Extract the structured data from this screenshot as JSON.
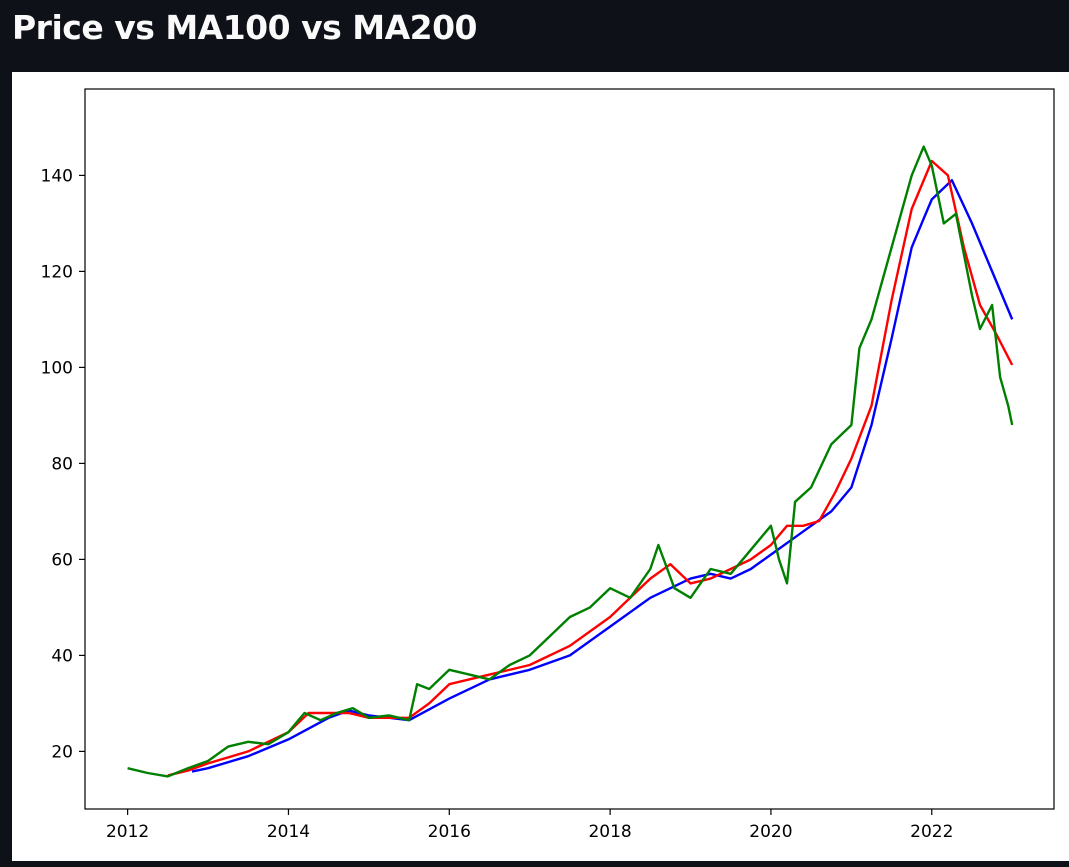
{
  "header": {
    "title": "Price vs MA100 vs MA200"
  },
  "colors": {
    "background": "#0e1117",
    "price": "#008000",
    "ma100": "#ff0000",
    "ma200": "#0000ff",
    "plot_bg": "#ffffff"
  },
  "chart_data": {
    "type": "line",
    "title": "",
    "xlabel": "",
    "ylabel": "",
    "xlim": [
      2011.47,
      2023.52
    ],
    "ylim": [
      8,
      158
    ],
    "xticks": [
      2012,
      2014,
      2016,
      2018,
      2020,
      2022
    ],
    "yticks": [
      20,
      40,
      60,
      80,
      100,
      120,
      140
    ],
    "grid": false,
    "legend": "none",
    "series": [
      {
        "color": "#008000",
        "x": [
          2012.0,
          2012.25,
          2012.5,
          2012.75,
          2013.0,
          2013.25,
          2013.5,
          2013.75,
          2014.0,
          2014.2,
          2014.4,
          2014.6,
          2014.8,
          2015.0,
          2015.25,
          2015.5,
          2015.6,
          2015.75,
          2016.0,
          2016.25,
          2016.5,
          2016.75,
          2017.0,
          2017.25,
          2017.5,
          2017.75,
          2018.0,
          2018.25,
          2018.5,
          2018.6,
          2018.8,
          2019.0,
          2019.25,
          2019.5,
          2019.75,
          2020.0,
          2020.1,
          2020.2,
          2020.3,
          2020.5,
          2020.75,
          2021.0,
          2021.1,
          2021.25,
          2021.5,
          2021.75,
          2021.9,
          2022.0,
          2022.15,
          2022.3,
          2022.5,
          2022.6,
          2022.75,
          2022.85,
          2022.95,
          2023.0
        ],
        "values": [
          16.5,
          15.5,
          14.8,
          16.5,
          18,
          21,
          22,
          21.5,
          24,
          28,
          26.5,
          28,
          29,
          27,
          27.5,
          26.5,
          34,
          33,
          37,
          36,
          35,
          38,
          40,
          44,
          48,
          50,
          54,
          52,
          58,
          63,
          54,
          52,
          58,
          57,
          62,
          67,
          60,
          55,
          72,
          75,
          84,
          88,
          104,
          110,
          125,
          140,
          146,
          142,
          130,
          132,
          115,
          108,
          113,
          98,
          92,
          88
        ]
      },
      {
        "color": "#ff0000",
        "x": [
          2012.5,
          2012.75,
          2013.0,
          2013.5,
          2014.0,
          2014.25,
          2014.5,
          2014.75,
          2015.0,
          2015.5,
          2015.75,
          2016.0,
          2016.5,
          2017.0,
          2017.5,
          2018.0,
          2018.25,
          2018.5,
          2018.75,
          2019.0,
          2019.25,
          2019.5,
          2019.75,
          2020.0,
          2020.2,
          2020.4,
          2020.6,
          2020.8,
          2021.0,
          2021.25,
          2021.5,
          2021.75,
          2022.0,
          2022.2,
          2022.4,
          2022.6,
          2022.8,
          2023.0
        ],
        "values": [
          15,
          16,
          17.5,
          20,
          24,
          28,
          28,
          28,
          27,
          27,
          30,
          34,
          36,
          38,
          42,
          48,
          52,
          56,
          59,
          55,
          56,
          58,
          60,
          63,
          67,
          67,
          68,
          74,
          81,
          92,
          114,
          133,
          143,
          140,
          125,
          113,
          107,
          100.5
        ]
      },
      {
        "color": "#0000ff",
        "x": [
          2012.8,
          2013.0,
          2013.5,
          2014.0,
          2014.5,
          2014.75,
          2015.0,
          2015.5,
          2016.0,
          2016.5,
          2017.0,
          2017.5,
          2018.0,
          2018.5,
          2019.0,
          2019.25,
          2019.5,
          2019.75,
          2020.0,
          2020.25,
          2020.5,
          2020.75,
          2021.0,
          2021.25,
          2021.5,
          2021.75,
          2021.9,
          2022.0,
          2022.25,
          2022.5,
          2022.75,
          2023.0
        ],
        "values": [
          15.8,
          16.5,
          19,
          22.5,
          27,
          28.5,
          27.5,
          26.5,
          31,
          35,
          37,
          40,
          46,
          52,
          56,
          57,
          56,
          58,
          61,
          64,
          67,
          70,
          75,
          88,
          106,
          125,
          131,
          135,
          139,
          130,
          120,
          110
        ]
      }
    ]
  }
}
